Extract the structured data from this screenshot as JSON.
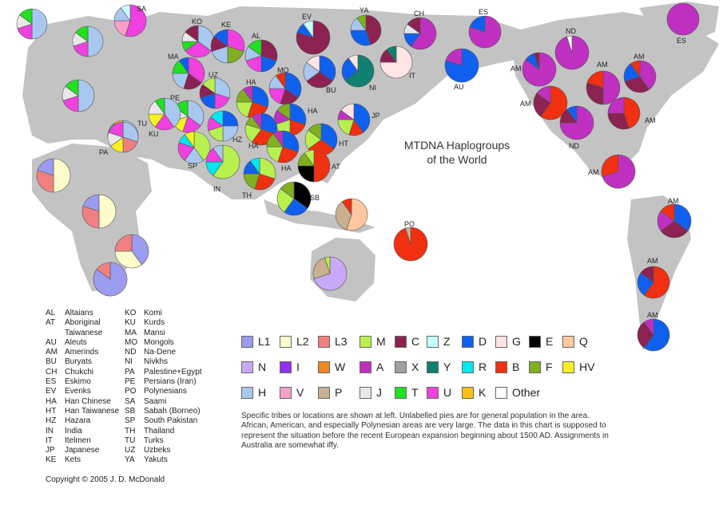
{
  "title": [
    "MTDNA Haplogroups",
    "of the World"
  ],
  "haplogroups": [
    {
      "code": "L1",
      "color": "#9b9bf0"
    },
    {
      "code": "L2",
      "color": "#fffccc"
    },
    {
      "code": "L3",
      "color": "#f08080"
    },
    {
      "code": "M",
      "color": "#b8f050"
    },
    {
      "code": "C",
      "color": "#8b2252"
    },
    {
      "code": "Z",
      "color": "#c8ffff"
    },
    {
      "code": "D",
      "color": "#1060f0"
    },
    {
      "code": "G",
      "color": "#ffe4e4"
    },
    {
      "code": "E",
      "color": "#000000"
    },
    {
      "code": "Q",
      "color": "#ffc8a0"
    },
    {
      "code": "N",
      "color": "#c8a8f8"
    },
    {
      "code": "I",
      "color": "#9030f0"
    },
    {
      "code": "W",
      "color": "#f08820"
    },
    {
      "code": "A",
      "color": "#c030c0"
    },
    {
      "code": "X",
      "color": "#a0a0a0"
    },
    {
      "code": "Y",
      "color": "#108070"
    },
    {
      "code": "R",
      "color": "#00e8f0"
    },
    {
      "code": "B",
      "color": "#f03010"
    },
    {
      "code": "F",
      "color": "#80b020"
    },
    {
      "code": "HV",
      "color": "#f8f020"
    },
    {
      "code": "H",
      "color": "#a8c8f0"
    },
    {
      "code": "V",
      "color": "#f8a0c8"
    },
    {
      "code": "P",
      "color": "#c8b090"
    },
    {
      "code": "J",
      "color": "#e8e8e8"
    },
    {
      "code": "T",
      "color": "#20e020"
    },
    {
      "code": "U",
      "color": "#f040e0"
    },
    {
      "code": "K",
      "color": "#f8c010"
    },
    {
      "code": "Other",
      "color": "#ffffff"
    }
  ],
  "abbreviations": [
    {
      "code": "AL",
      "name": "Altaians"
    },
    {
      "code": "AT",
      "name": "Aboriginal"
    },
    {
      "code": "",
      "name": "Taiwanese"
    },
    {
      "code": "AU",
      "name": "Aleuts"
    },
    {
      "code": "AM",
      "name": "Amerinds"
    },
    {
      "code": "BU",
      "name": "Buryats"
    },
    {
      "code": "CH",
      "name": "Chukchi"
    },
    {
      "code": "ES",
      "name": "Eskimo"
    },
    {
      "code": "EV",
      "name": "Evenks"
    },
    {
      "code": "HA",
      "name": "Han Chinese"
    },
    {
      "code": "HT",
      "name": "Han Taiwanese"
    },
    {
      "code": "HZ",
      "name": "Hazara"
    },
    {
      "code": "IN",
      "name": "India"
    },
    {
      "code": "IT",
      "name": "Itelmen"
    },
    {
      "code": "JP",
      "name": "Japanese"
    },
    {
      "code": "KE",
      "name": "Kets"
    },
    {
      "code": "KO",
      "name": "Komi"
    },
    {
      "code": "KU",
      "name": "Kurds"
    },
    {
      "code": "MA",
      "name": "Mansi"
    },
    {
      "code": "MO",
      "name": "Mongols"
    },
    {
      "code": "ND",
      "name": "Na-Dene"
    },
    {
      "code": "NI",
      "name": "Nivkhs"
    },
    {
      "code": "PA",
      "name": "Palestine+Egypt"
    },
    {
      "code": "PE",
      "name": "Persians (Iran)"
    },
    {
      "code": "PO",
      "name": "Polynesians"
    },
    {
      "code": "SA",
      "name": "Saami"
    },
    {
      "code": "SB",
      "name": "Sabah (Borneo)"
    },
    {
      "code": "SP",
      "name": "South Pakistan"
    },
    {
      "code": "TH",
      "name": "Thailand"
    },
    {
      "code": "TU",
      "name": "Turks"
    },
    {
      "code": "UZ",
      "name": "Uzbeks"
    },
    {
      "code": "YA",
      "name": "Yakuts"
    }
  ],
  "note": "Specific tribes or locations are shown at left. Unlabelled pies are for general population in the area. African, American, and especially Polynesian areas are very large. The data in this chart is supposed to represent the situation before the recent European expansion beginning about 1500 AD. Assignments in Australia are somewhat iffy.",
  "copyright": "Copyright © 2005 J. D. McDonald",
  "pies": [
    {
      "label": "SA",
      "segments": [
        [
          "U",
          0.55
        ],
        [
          "V",
          0.2
        ],
        [
          "H",
          0.15
        ],
        [
          "Z",
          0.1
        ]
      ]
    },
    {
      "label": "KO",
      "segments": [
        [
          "H",
          0.35
        ],
        [
          "U",
          0.3
        ],
        [
          "T",
          0.1
        ],
        [
          "J",
          0.1
        ],
        [
          "C",
          0.15
        ]
      ]
    },
    {
      "label": "KE",
      "segments": [
        [
          "U",
          0.3
        ],
        [
          "F",
          0.2
        ],
        [
          "H",
          0.2
        ],
        [
          "C",
          0.15
        ],
        [
          "D",
          0.15
        ]
      ]
    },
    {
      "label": "AL",
      "segments": [
        [
          "C",
          0.3
        ],
        [
          "D",
          0.2
        ],
        [
          "U",
          0.2
        ],
        [
          "H",
          0.15
        ],
        [
          "T",
          0.15
        ]
      ]
    },
    {
      "label": "MA",
      "segments": [
        [
          "U",
          0.35
        ],
        [
          "C",
          0.2
        ],
        [
          "H",
          0.2
        ],
        [
          "T",
          0.15
        ],
        [
          "D",
          0.1
        ]
      ]
    },
    {
      "label": "EV",
      "segments": [
        [
          "C",
          0.8
        ],
        [
          "D",
          0.1
        ],
        [
          "Z",
          0.1
        ]
      ]
    },
    {
      "label": "YA",
      "segments": [
        [
          "C",
          0.45
        ],
        [
          "D",
          0.3
        ],
        [
          "H",
          0.15
        ],
        [
          "F",
          0.1
        ]
      ]
    },
    {
      "label": "CH",
      "segments": [
        [
          "A",
          0.6
        ],
        [
          "D",
          0.15
        ],
        [
          "J",
          0.1
        ],
        [
          "C",
          0.15
        ]
      ]
    },
    {
      "label": "ES",
      "segments": [
        [
          "A",
          0.8
        ],
        [
          "D",
          0.2
        ]
      ]
    },
    {
      "label": "ES",
      "segments": [
        [
          "A",
          1.0
        ]
      ]
    },
    {
      "label": "MO",
      "segments": [
        [
          "D",
          0.35
        ],
        [
          "C",
          0.2
        ],
        [
          "U",
          0.2
        ],
        [
          "H",
          0.15
        ],
        [
          "B",
          0.1
        ]
      ]
    },
    {
      "label": "BU",
      "segments": [
        [
          "D",
          0.35
        ],
        [
          "C",
          0.3
        ],
        [
          "H",
          0.2
        ],
        [
          "G",
          0.15
        ]
      ]
    },
    {
      "label": "NI",
      "segments": [
        [
          "Y",
          0.65
        ],
        [
          "D",
          0.25
        ],
        [
          "G",
          0.1
        ]
      ]
    },
    {
      "label": "IT",
      "segments": [
        [
          "G",
          0.75
        ],
        [
          "C",
          0.15
        ],
        [
          "Y",
          0.1
        ]
      ]
    },
    {
      "label": "AU",
      "segments": [
        [
          "D",
          0.8
        ],
        [
          "A",
          0.2
        ]
      ]
    },
    {
      "label": "ND",
      "segments": [
        [
          "A",
          0.95
        ],
        [
          "Other",
          0.05
        ]
      ]
    },
    {
      "label": "UZ",
      "segments": [
        [
          "H",
          0.3
        ],
        [
          "U",
          0.2
        ],
        [
          "D",
          0.2
        ],
        [
          "C",
          0.15
        ],
        [
          "M",
          0.15
        ]
      ]
    },
    {
      "label": "HA",
      "segments": [
        [
          "D",
          0.3
        ],
        [
          "B",
          0.25
        ],
        [
          "M",
          0.2
        ],
        [
          "F",
          0.15
        ],
        [
          "A",
          0.1
        ]
      ]
    },
    {
      "label": "HA",
      "segments": [
        [
          "D",
          0.3
        ],
        [
          "B",
          0.2
        ],
        [
          "M",
          0.2
        ],
        [
          "A",
          0.15
        ],
        [
          "F",
          0.15
        ]
      ]
    },
    {
      "label": "PE",
      "segments": [
        [
          "H",
          0.35
        ],
        [
          "U",
          0.2
        ],
        [
          "HV",
          0.15
        ],
        [
          "J",
          0.15
        ],
        [
          "T",
          0.15
        ]
      ]
    },
    {
      "label": "KU",
      "segments": [
        [
          "H",
          0.4
        ],
        [
          "U",
          0.2
        ],
        [
          "HV",
          0.15
        ],
        [
          "J",
          0.15
        ],
        [
          "T",
          0.1
        ]
      ]
    },
    {
      "label": "TU",
      "segments": [
        [
          "H",
          0.4
        ],
        [
          "U",
          0.2
        ],
        [
          "J",
          0.15
        ],
        [
          "T",
          0.15
        ],
        [
          "K",
          0.1
        ]
      ]
    },
    {
      "label": "PA",
      "segments": [
        [
          "H",
          0.3
        ],
        [
          "L3",
          0.2
        ],
        [
          "HV",
          0.15
        ],
        [
          "J",
          0.15
        ],
        [
          "U",
          0.2
        ]
      ]
    },
    {
      "label": "HZ",
      "segments": [
        [
          "D",
          0.25
        ],
        [
          "H",
          0.25
        ],
        [
          "M",
          0.2
        ],
        [
          "U",
          0.15
        ],
        [
          "R",
          0.15
        ]
      ]
    },
    {
      "label": "SP",
      "segments": [
        [
          "M",
          0.4
        ],
        [
          "H",
          0.2
        ],
        [
          "U",
          0.2
        ],
        [
          "R",
          0.1
        ],
        [
          "HV",
          0.1
        ]
      ]
    },
    {
      "label": "IN",
      "segments": [
        [
          "M",
          0.6
        ],
        [
          "R",
          0.15
        ],
        [
          "U",
          0.15
        ],
        [
          "H",
          0.1
        ]
      ]
    },
    {
      "label": "TH",
      "segments": [
        [
          "M",
          0.3
        ],
        [
          "B",
          0.25
        ],
        [
          "F",
          0.2
        ],
        [
          "D",
          0.15
        ],
        [
          "R",
          0.1
        ]
      ]
    },
    {
      "label": "HA",
      "segments": [
        [
          "D",
          0.3
        ],
        [
          "B",
          0.3
        ],
        [
          "M",
          0.2
        ],
        [
          "F",
          0.1
        ],
        [
          "A",
          0.1
        ]
      ]
    },
    {
      "label": "HA",
      "segments": [
        [
          "D",
          0.3
        ],
        [
          "B",
          0.25
        ],
        [
          "M",
          0.2
        ],
        [
          "F",
          0.15
        ],
        [
          "A",
          0.1
        ]
      ]
    },
    {
      "label": "HT",
      "segments": [
        [
          "D",
          0.35
        ],
        [
          "B",
          0.3
        ],
        [
          "M",
          0.2
        ],
        [
          "F",
          0.15
        ]
      ]
    },
    {
      "label": "JP",
      "segments": [
        [
          "D",
          0.4
        ],
        [
          "B",
          0.15
        ],
        [
          "M",
          0.2
        ],
        [
          "A",
          0.1
        ],
        [
          "G",
          0.15
        ]
      ]
    },
    {
      "label": "AT",
      "segments": [
        [
          "B",
          0.5
        ],
        [
          "E",
          0.25
        ],
        [
          "F",
          0.15
        ],
        [
          "M",
          0.1
        ]
      ]
    },
    {
      "label": "SB",
      "segments": [
        [
          "E",
          0.35
        ],
        [
          "D",
          0.25
        ],
        [
          "M",
          0.25
        ],
        [
          "F",
          0.15
        ]
      ]
    },
    {
      "label": "",
      "segments": [
        [
          "Q",
          0.55
        ],
        [
          "P",
          0.35
        ],
        [
          "B",
          0.1
        ]
      ]
    },
    {
      "label": "PO",
      "segments": [
        [
          "B",
          0.95
        ],
        [
          "P",
          0.05
        ]
      ]
    },
    {
      "label": "",
      "segments": [
        [
          "N",
          0.7
        ],
        [
          "P",
          0.25
        ],
        [
          "M",
          0.05
        ]
      ]
    },
    {
      "label": "AM",
      "segments": [
        [
          "A",
          0.85
        ],
        [
          "D",
          0.1
        ],
        [
          "C",
          0.05
        ]
      ]
    },
    {
      "label": "AM",
      "segments": [
        [
          "A",
          0.5
        ],
        [
          "C",
          0.3
        ],
        [
          "B",
          0.2
        ]
      ]
    },
    {
      "label": "AM",
      "segments": [
        [
          "A",
          0.4
        ],
        [
          "C",
          0.3
        ],
        [
          "D",
          0.2
        ],
        [
          "B",
          0.1
        ]
      ]
    },
    {
      "label": "AM",
      "segments": [
        [
          "B",
          0.6
        ],
        [
          "C",
          0.25
        ],
        [
          "A",
          0.15
        ]
      ]
    },
    {
      "label": "ND",
      "segments": [
        [
          "A",
          0.75
        ],
        [
          "C",
          0.15
        ],
        [
          "D",
          0.1
        ]
      ]
    },
    {
      "label": "AM",
      "segments": [
        [
          "B",
          0.45
        ],
        [
          "C",
          0.3
        ],
        [
          "A",
          0.25
        ]
      ]
    },
    {
      "label": "AM",
      "segments": [
        [
          "A",
          0.7
        ],
        [
          "B",
          0.3
        ]
      ]
    },
    {
      "label": "AM",
      "segments": [
        [
          "D",
          0.35
        ],
        [
          "C",
          0.3
        ],
        [
          "A",
          0.2
        ],
        [
          "B",
          0.15
        ]
      ]
    },
    {
      "label": "AM",
      "segments": [
        [
          "B",
          0.6
        ],
        [
          "D",
          0.25
        ],
        [
          "C",
          0.15
        ]
      ]
    },
    {
      "label": "AM",
      "segments": [
        [
          "D",
          0.6
        ],
        [
          "C",
          0.3
        ],
        [
          "A",
          0.1
        ]
      ]
    },
    {
      "label": "",
      "segments": [
        [
          "H",
          0.5
        ],
        [
          "U",
          0.2
        ],
        [
          "J",
          0.15
        ],
        [
          "T",
          0.15
        ]
      ]
    },
    {
      "label": "",
      "segments": [
        [
          "H",
          0.5
        ],
        [
          "U",
          0.2
        ],
        [
          "J",
          0.15
        ],
        [
          "T",
          0.15
        ]
      ]
    },
    {
      "label": "",
      "segments": [
        [
          "H",
          0.5
        ],
        [
          "U",
          0.2
        ],
        [
          "J",
          0.15
        ],
        [
          "T",
          0.15
        ]
      ]
    },
    {
      "label": "",
      "segments": [
        [
          "L2",
          0.5
        ],
        [
          "L3",
          0.3
        ],
        [
          "L1",
          0.2
        ]
      ]
    },
    {
      "label": "",
      "segments": [
        [
          "L2",
          0.5
        ],
        [
          "L3",
          0.3
        ],
        [
          "L1",
          0.2
        ]
      ]
    },
    {
      "label": "",
      "segments": [
        [
          "L1",
          0.4
        ],
        [
          "L2",
          0.35
        ],
        [
          "L3",
          0.25
        ]
      ]
    },
    {
      "label": "",
      "segments": [
        [
          "L1",
          0.85
        ],
        [
          "L3",
          0.15
        ]
      ]
    }
  ]
}
